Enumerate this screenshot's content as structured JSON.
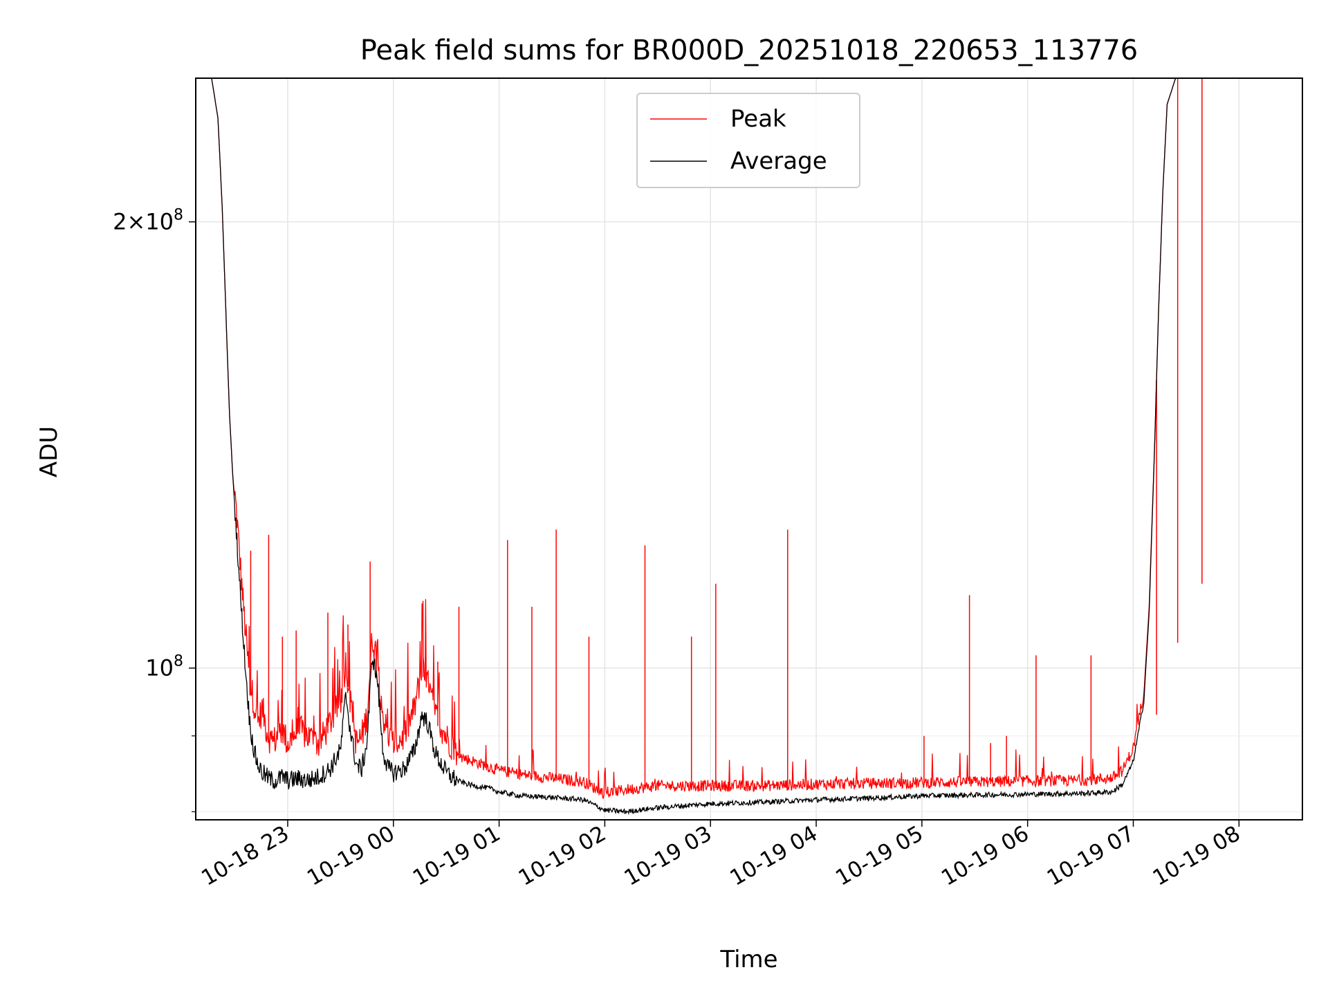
{
  "chart_data": {
    "type": "line",
    "title": "Peak field sums for BR000D_20251018_220653_113776",
    "xlabel": "Time",
    "ylabel": "ADU",
    "yscale": "log",
    "ylim": [
      79000000,
      250000000
    ],
    "xlim_hours": [
      -0.87,
      9.6
    ],
    "grid": true,
    "legend_position": "upper center",
    "x_tick_labels": [
      "10-18 23",
      "10-19 00",
      "10-19 01",
      "10-19 02",
      "10-19 03",
      "10-19 04",
      "10-19 05",
      "10-19 06",
      "10-19 07",
      "10-19 08"
    ],
    "x_tick_hours": [
      0,
      1,
      2,
      3,
      4,
      5,
      6,
      7,
      8,
      9
    ],
    "y_major_ticks": [
      {
        "value": 200000000,
        "mantissa": "2",
        "exponent": "8"
      },
      {
        "value": 100000000,
        "mantissa": "",
        "exponent": "8"
      }
    ],
    "y_minor_ticks": [
      80000000,
      90000000
    ],
    "series": [
      {
        "name": "Peak",
        "color": "#ff0000",
        "points": [
          [
            -0.87,
            250000000
          ],
          [
            -0.72,
            250000000
          ],
          [
            -0.66,
            235000000
          ],
          [
            -0.62,
            205000000
          ],
          [
            -0.58,
            170000000
          ],
          [
            -0.55,
            148000000
          ],
          [
            -0.52,
            135000000
          ],
          [
            -0.48,
            125000000
          ],
          [
            -0.44,
            114000000
          ],
          [
            -0.4,
            105000000
          ],
          [
            -0.36,
            97000000
          ],
          [
            -0.32,
            94000000
          ],
          [
            -0.28,
            91000000
          ],
          [
            -0.24,
            93000000
          ],
          [
            -0.2,
            90000000
          ],
          [
            -0.15,
            88000000
          ],
          [
            -0.1,
            89000000
          ],
          [
            -0.05,
            90000000
          ],
          [
            0.0,
            88000000
          ],
          [
            0.1,
            90000000
          ],
          [
            0.2,
            89000000
          ],
          [
            0.3,
            88000000
          ],
          [
            0.4,
            91000000
          ],
          [
            0.5,
            94000000
          ],
          [
            0.55,
            100000000
          ],
          [
            0.6,
            93000000
          ],
          [
            0.65,
            88000000
          ],
          [
            0.7,
            89000000
          ],
          [
            0.75,
            92000000
          ],
          [
            0.8,
            104000000
          ],
          [
            0.85,
            100000000
          ],
          [
            0.9,
            92000000
          ],
          [
            0.95,
            89000000
          ],
          [
            1.0,
            88000000
          ],
          [
            1.1,
            89000000
          ],
          [
            1.2,
            93000000
          ],
          [
            1.27,
            99000000
          ],
          [
            1.32,
            97000000
          ],
          [
            1.4,
            92000000
          ],
          [
            1.5,
            89000000
          ],
          [
            1.6,
            87000000
          ],
          [
            1.7,
            86500000
          ],
          [
            1.8,
            86000000
          ],
          [
            1.9,
            85500000
          ],
          [
            2.0,
            85000000
          ],
          [
            2.2,
            84500000
          ],
          [
            2.5,
            84000000
          ],
          [
            2.8,
            83500000
          ],
          [
            3.0,
            82000000
          ],
          [
            3.2,
            82500000
          ],
          [
            3.5,
            83000000
          ],
          [
            3.8,
            83000000
          ],
          [
            4.0,
            83000000
          ],
          [
            4.5,
            83000000
          ],
          [
            5.0,
            83200000
          ],
          [
            5.5,
            83300000
          ],
          [
            6.0,
            83400000
          ],
          [
            6.5,
            83500000
          ],
          [
            7.0,
            83600000
          ],
          [
            7.5,
            83700000
          ],
          [
            7.8,
            84000000
          ],
          [
            7.9,
            85000000
          ],
          [
            8.0,
            88000000
          ],
          [
            8.1,
            96000000
          ],
          [
            8.15,
            110000000
          ],
          [
            8.2,
            140000000
          ],
          [
            8.24,
            175000000
          ],
          [
            8.28,
            210000000
          ],
          [
            8.32,
            240000000
          ],
          [
            8.4,
            250000000
          ],
          [
            9.6,
            250000000
          ]
        ],
        "spikes": [
          [
            -0.35,
            120000000
          ],
          [
            -0.18,
            123000000
          ],
          [
            -0.05,
            105000000
          ],
          [
            0.08,
            106000000
          ],
          [
            0.38,
            109000000
          ],
          [
            0.57,
            107000000
          ],
          [
            0.78,
            118000000
          ],
          [
            1.28,
            111000000
          ],
          [
            1.42,
            101000000
          ],
          [
            1.62,
            110000000
          ],
          [
            2.08,
            122000000
          ],
          [
            2.31,
            110000000
          ],
          [
            2.54,
            124000000
          ],
          [
            2.85,
            105000000
          ],
          [
            3.38,
            121000000
          ],
          [
            3.82,
            105000000
          ],
          [
            4.05,
            114000000
          ],
          [
            4.73,
            124000000
          ],
          [
            6.02,
            90000000
          ],
          [
            6.45,
            112000000
          ],
          [
            6.65,
            89000000
          ],
          [
            6.8,
            90000000
          ],
          [
            7.08,
            102000000
          ],
          [
            7.6,
            102000000
          ],
          [
            8.22,
            93000000
          ],
          [
            8.42,
            104000000
          ],
          [
            8.65,
            114000000
          ]
        ]
      },
      {
        "name": "Average",
        "color": "#000000",
        "points": [
          [
            -0.87,
            250000000
          ],
          [
            -0.72,
            250000000
          ],
          [
            -0.66,
            235000000
          ],
          [
            -0.62,
            205000000
          ],
          [
            -0.58,
            170000000
          ],
          [
            -0.55,
            148000000
          ],
          [
            -0.52,
            135000000
          ],
          [
            -0.48,
            122000000
          ],
          [
            -0.44,
            110000000
          ],
          [
            -0.4,
            100000000
          ],
          [
            -0.36,
            92000000
          ],
          [
            -0.32,
            88000000
          ],
          [
            -0.28,
            86000000
          ],
          [
            -0.24,
            85000000
          ],
          [
            -0.2,
            84500000
          ],
          [
            -0.15,
            84000000
          ],
          [
            -0.1,
            84000000
          ],
          [
            -0.05,
            84500000
          ],
          [
            0.0,
            84000000
          ],
          [
            0.1,
            84200000
          ],
          [
            0.2,
            84000000
          ],
          [
            0.3,
            84500000
          ],
          [
            0.4,
            85500000
          ],
          [
            0.5,
            88000000
          ],
          [
            0.55,
            96000000
          ],
          [
            0.6,
            90000000
          ],
          [
            0.65,
            86000000
          ],
          [
            0.7,
            85500000
          ],
          [
            0.75,
            89000000
          ],
          [
            0.8,
            102000000
          ],
          [
            0.85,
            98000000
          ],
          [
            0.9,
            88000000
          ],
          [
            0.95,
            85500000
          ],
          [
            1.0,
            85000000
          ],
          [
            1.1,
            85500000
          ],
          [
            1.2,
            88000000
          ],
          [
            1.27,
            93000000
          ],
          [
            1.32,
            92000000
          ],
          [
            1.4,
            87500000
          ],
          [
            1.5,
            85000000
          ],
          [
            1.6,
            84000000
          ],
          [
            1.7,
            83500000
          ],
          [
            1.8,
            83200000
          ],
          [
            1.9,
            83000000
          ],
          [
            2.0,
            82500000
          ],
          [
            2.2,
            82000000
          ],
          [
            2.5,
            81800000
          ],
          [
            2.8,
            81500000
          ],
          [
            3.0,
            80200000
          ],
          [
            3.2,
            80000000
          ],
          [
            3.5,
            80500000
          ],
          [
            3.8,
            80800000
          ],
          [
            4.0,
            81000000
          ],
          [
            4.5,
            81200000
          ],
          [
            5.0,
            81500000
          ],
          [
            5.5,
            81700000
          ],
          [
            6.0,
            82000000
          ],
          [
            6.5,
            82100000
          ],
          [
            7.0,
            82200000
          ],
          [
            7.5,
            82300000
          ],
          [
            7.8,
            82500000
          ],
          [
            7.9,
            83500000
          ],
          [
            8.0,
            86500000
          ],
          [
            8.1,
            95000000
          ],
          [
            8.15,
            109000000
          ],
          [
            8.2,
            140000000
          ],
          [
            8.24,
            175000000
          ],
          [
            8.28,
            210000000
          ],
          [
            8.32,
            240000000
          ],
          [
            8.4,
            250000000
          ],
          [
            9.6,
            250000000
          ]
        ]
      }
    ]
  }
}
